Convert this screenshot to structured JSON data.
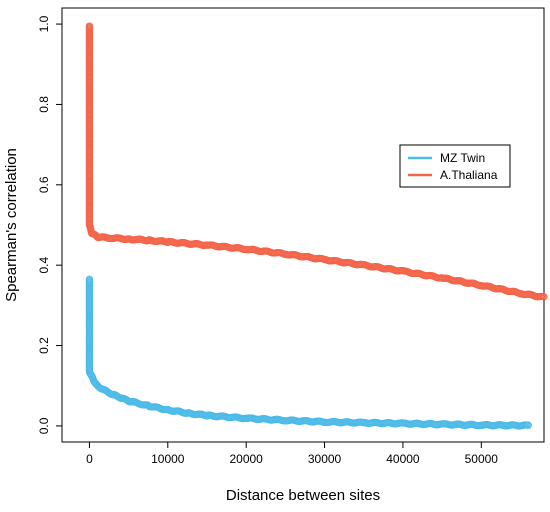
{
  "chart_data": {
    "type": "scatter",
    "title": "",
    "xlabel": "Distance between sites",
    "ylabel": "Spearman's correlation",
    "xlim": [
      -3500,
      58000
    ],
    "ylim": [
      -0.04,
      1.04
    ],
    "x_ticks": [
      0,
      10000,
      20000,
      30000,
      40000,
      50000
    ],
    "x_tick_labels": [
      "0",
      "10000",
      "20000",
      "30000",
      "40000",
      "50000"
    ],
    "y_ticks": [
      0.0,
      0.2,
      0.4,
      0.6,
      0.8,
      1.0
    ],
    "y_tick_labels": [
      "0.0",
      "0.2",
      "0.4",
      "0.6",
      "0.8",
      "1.0"
    ],
    "grid": false,
    "legend_position": "right",
    "series": [
      {
        "name": "MZ Twin",
        "color": "#4dbbe8",
        "x": [
          0,
          0,
          0,
          0,
          0,
          0,
          0,
          0,
          0,
          0,
          500,
          1000,
          2000,
          3000,
          4000,
          5000,
          7500,
          10000,
          12500,
          15000,
          20000,
          25000,
          30000,
          35000,
          40000,
          45000,
          50000,
          56000
        ],
        "y": [
          0.365,
          0.28,
          0.255,
          0.235,
          0.215,
          0.2,
          0.19,
          0.17,
          0.15,
          0.135,
          0.115,
          0.1,
          0.088,
          0.078,
          0.07,
          0.062,
          0.05,
          0.04,
          0.032,
          0.026,
          0.019,
          0.014,
          0.01,
          0.008,
          0.006,
          0.004,
          0.002,
          0.001
        ]
      },
      {
        "name": "A.Thaliana",
        "color": "#f4654a",
        "x": [
          0,
          0,
          0,
          0,
          0,
          0,
          0,
          0,
          0,
          0,
          0,
          0,
          0,
          0,
          300,
          1000,
          2500,
          5000,
          7500,
          10000,
          15000,
          20000,
          25000,
          30000,
          35000,
          40000,
          45000,
          50000,
          55000,
          58000
        ],
        "y": [
          0.995,
          0.97,
          0.94,
          0.9,
          0.86,
          0.82,
          0.78,
          0.74,
          0.7,
          0.66,
          0.62,
          0.58,
          0.54,
          0.5,
          0.48,
          0.47,
          0.468,
          0.465,
          0.462,
          0.458,
          0.45,
          0.44,
          0.428,
          0.414,
          0.4,
          0.385,
          0.368,
          0.35,
          0.33,
          0.32
        ]
      }
    ]
  }
}
